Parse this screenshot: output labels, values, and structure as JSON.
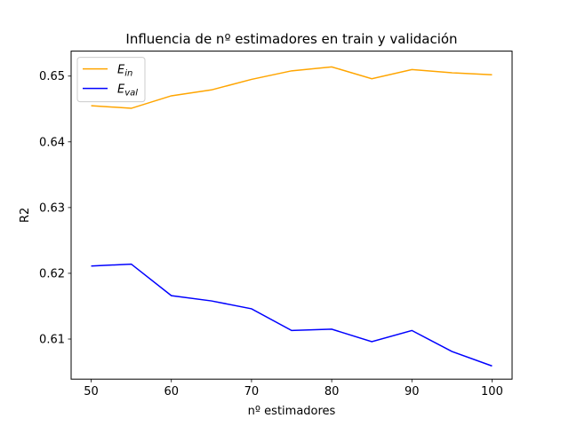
{
  "chart_data": {
    "type": "line",
    "title": "Influencia de nº estimadores  en train y validación",
    "xlabel": "nº estimadores",
    "ylabel": "R2",
    "x": [
      50,
      55,
      60,
      65,
      70,
      75,
      80,
      85,
      90,
      95,
      100
    ],
    "xlim": [
      47.5,
      102.5
    ],
    "ylim": [
      0.6039,
      0.6538
    ],
    "xticks": [
      50,
      60,
      70,
      80,
      90,
      100
    ],
    "yticks": [
      0.61,
      0.62,
      0.63,
      0.64,
      0.65
    ],
    "grid": false,
    "legend_position": "upper-left",
    "series": [
      {
        "name": "E_in",
        "label_main": "E",
        "label_sub": "in",
        "color": "#ffa500",
        "values": [
          0.6455,
          0.6451,
          0.647,
          0.6479,
          0.6495,
          0.6508,
          0.6514,
          0.6496,
          0.651,
          0.6505,
          0.6502
        ]
      },
      {
        "name": "E_val",
        "label_main": "E",
        "label_sub": "val",
        "color": "#0000ff",
        "values": [
          0.6211,
          0.6214,
          0.6166,
          0.6158,
          0.6146,
          0.6113,
          0.6115,
          0.6096,
          0.6113,
          0.6081,
          0.6059
        ]
      }
    ]
  }
}
